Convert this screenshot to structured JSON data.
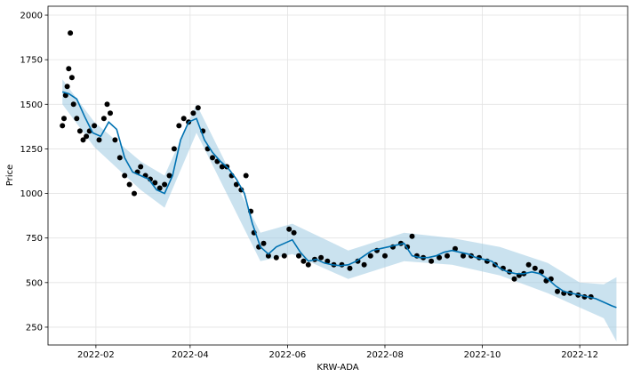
{
  "chart_data": {
    "type": "line",
    "title": "",
    "xlabel": "KRW-ADA",
    "ylabel": "Price",
    "xlim": [
      "2022-01-02",
      "2022-12-31"
    ],
    "ylim": [
      150,
      2050
    ],
    "grid": true,
    "legend": "none",
    "x_ticks": [
      "2022-02",
      "2022-04",
      "2022-06",
      "2022-08",
      "2022-10",
      "2022-12"
    ],
    "y_ticks": [
      250,
      500,
      750,
      1000,
      1250,
      1500,
      1750,
      2000
    ],
    "colors": {
      "observed": "#000000",
      "forecast": "#0072B2",
      "interval": "#9ecae1"
    },
    "series": [
      {
        "kind": "observed",
        "x": [
          "2022-01-11",
          "2022-01-12",
          "2022-01-13",
          "2022-01-14",
          "2022-01-15",
          "2022-01-16",
          "2022-01-17",
          "2022-01-18",
          "2022-01-20",
          "2022-01-22",
          "2022-01-24",
          "2022-01-26",
          "2022-01-28",
          "2022-01-31",
          "2022-02-03",
          "2022-02-06",
          "2022-02-08",
          "2022-02-10",
          "2022-02-13",
          "2022-02-16",
          "2022-02-19",
          "2022-02-22",
          "2022-02-25",
          "2022-02-27",
          "2022-03-01",
          "2022-03-04",
          "2022-03-07",
          "2022-03-10",
          "2022-03-13",
          "2022-03-16",
          "2022-03-19",
          "2022-03-22",
          "2022-03-25",
          "2022-03-28",
          "2022-03-31",
          "2022-04-03",
          "2022-04-06",
          "2022-04-09",
          "2022-04-12",
          "2022-04-15",
          "2022-04-18",
          "2022-04-21",
          "2022-04-24",
          "2022-04-27",
          "2022-04-30",
          "2022-05-03",
          "2022-05-06",
          "2022-05-09",
          "2022-05-11",
          "2022-05-14",
          "2022-05-17",
          "2022-05-20",
          "2022-05-25",
          "2022-05-30",
          "2022-06-02",
          "2022-06-05",
          "2022-06-08",
          "2022-06-11",
          "2022-06-14",
          "2022-06-18",
          "2022-06-22",
          "2022-06-26",
          "2022-06-30",
          "2022-07-05",
          "2022-07-10",
          "2022-07-15",
          "2022-07-19",
          "2022-07-23",
          "2022-07-27",
          "2022-08-01",
          "2022-08-06",
          "2022-08-11",
          "2022-08-15",
          "2022-08-18",
          "2022-08-21",
          "2022-08-25",
          "2022-08-30",
          "2022-09-04",
          "2022-09-09",
          "2022-09-14",
          "2022-09-19",
          "2022-09-24",
          "2022-09-29",
          "2022-10-04",
          "2022-10-09",
          "2022-10-14",
          "2022-10-18",
          "2022-10-21",
          "2022-10-24",
          "2022-10-27",
          "2022-10-30",
          "2022-11-03",
          "2022-11-07",
          "2022-11-10",
          "2022-11-13",
          "2022-11-17",
          "2022-11-21",
          "2022-11-25",
          "2022-11-30",
          "2022-12-04",
          "2022-12-08"
        ],
        "y": [
          1380,
          1420,
          1550,
          1600,
          1700,
          1900,
          1650,
          1500,
          1420,
          1350,
          1300,
          1320,
          1350,
          1380,
          1300,
          1420,
          1500,
          1450,
          1300,
          1200,
          1100,
          1050,
          1000,
          1120,
          1150,
          1100,
          1080,
          1060,
          1030,
          1050,
          1100,
          1250,
          1380,
          1420,
          1400,
          1450,
          1480,
          1350,
          1250,
          1200,
          1180,
          1150,
          1150,
          1100,
          1050,
          1020,
          1100,
          900,
          780,
          700,
          720,
          650,
          640,
          650,
          800,
          780,
          650,
          620,
          600,
          630,
          640,
          620,
          600,
          600,
          580,
          620,
          600,
          650,
          680,
          650,
          700,
          720,
          700,
          760,
          650,
          640,
          620,
          640,
          650,
          690,
          650,
          650,
          640,
          620,
          600,
          580,
          560,
          520,
          540,
          550,
          600,
          580,
          560,
          510,
          520,
          450,
          440,
          440,
          430,
          420,
          420
        ]
      },
      {
        "kind": "forecast",
        "x": [
          "2022-01-11",
          "2022-01-15",
          "2022-01-20",
          "2022-01-25",
          "2022-01-30",
          "2022-02-04",
          "2022-02-09",
          "2022-02-14",
          "2022-02-19",
          "2022-02-24",
          "2022-03-01",
          "2022-03-06",
          "2022-03-11",
          "2022-03-16",
          "2022-03-21",
          "2022-03-26",
          "2022-03-31",
          "2022-04-05",
          "2022-04-10",
          "2022-04-15",
          "2022-04-20",
          "2022-04-25",
          "2022-04-30",
          "2022-05-05",
          "2022-05-10",
          "2022-05-15",
          "2022-05-20",
          "2022-05-25",
          "2022-05-30",
          "2022-06-04",
          "2022-06-09",
          "2022-06-14",
          "2022-06-19",
          "2022-06-24",
          "2022-06-29",
          "2022-07-04",
          "2022-07-09",
          "2022-07-14",
          "2022-07-19",
          "2022-07-24",
          "2022-07-29",
          "2022-08-03",
          "2022-08-08",
          "2022-08-13",
          "2022-08-18",
          "2022-08-23",
          "2022-08-28",
          "2022-09-02",
          "2022-09-07",
          "2022-09-12",
          "2022-09-17",
          "2022-09-22",
          "2022-09-27",
          "2022-10-02",
          "2022-10-07",
          "2022-10-12",
          "2022-10-17",
          "2022-10-22",
          "2022-10-27",
          "2022-11-01",
          "2022-11-06",
          "2022-11-11",
          "2022-11-16",
          "2022-11-21",
          "2022-11-26",
          "2022-12-01",
          "2022-12-06",
          "2022-12-11",
          "2022-12-16",
          "2022-12-21",
          "2022-12-24"
        ],
        "y": [
          1570,
          1560,
          1530,
          1430,
          1340,
          1320,
          1400,
          1360,
          1200,
          1120,
          1100,
          1080,
          1020,
          1000,
          1100,
          1300,
          1400,
          1420,
          1300,
          1230,
          1180,
          1140,
          1080,
          1000,
          830,
          700,
          660,
          700,
          720,
          740,
          670,
          620,
          630,
          610,
          600,
          595,
          600,
          620,
          650,
          680,
          690,
          700,
          710,
          720,
          650,
          640,
          640,
          650,
          670,
          680,
          670,
          660,
          640,
          630,
          620,
          580,
          560,
          550,
          550,
          560,
          550,
          520,
          480,
          450,
          440,
          430,
          420,
          410,
          390,
          370,
          360
        ]
      },
      {
        "kind": "interval",
        "x": [
          "2022-01-11",
          "2022-01-31",
          "2022-03-01",
          "2022-03-16",
          "2022-04-05",
          "2022-05-15",
          "2022-06-04",
          "2022-07-09",
          "2022-08-13",
          "2022-09-12",
          "2022-10-12",
          "2022-11-11",
          "2022-12-01",
          "2022-12-16",
          "2022-12-24"
        ],
        "upper": [
          1640,
          1400,
          1180,
          1100,
          1500,
          780,
          830,
          680,
          780,
          750,
          700,
          610,
          500,
          490,
          530
        ],
        "lower": [
          1500,
          1260,
          1020,
          920,
          1340,
          620,
          660,
          520,
          620,
          600,
          540,
          440,
          360,
          300,
          170
        ]
      }
    ]
  }
}
